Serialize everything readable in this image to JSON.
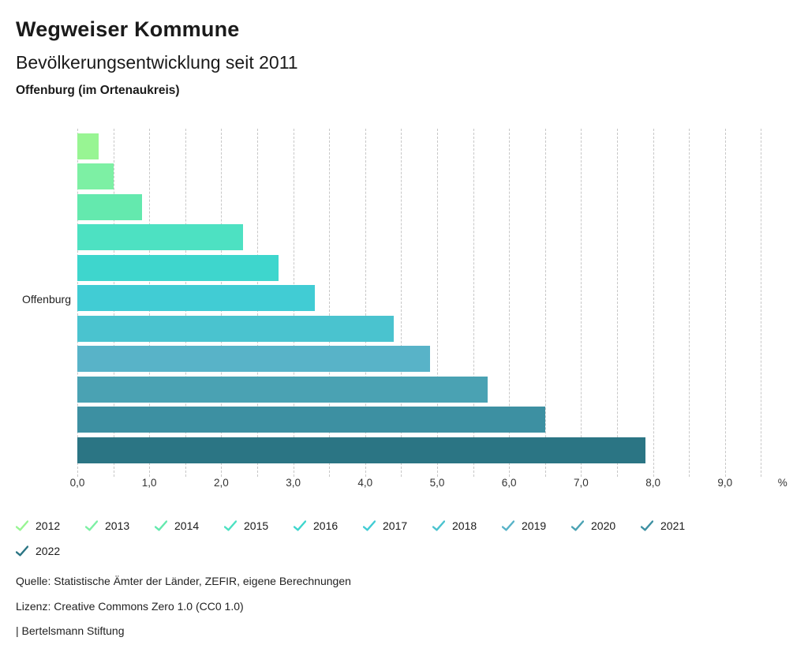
{
  "header": {
    "title": "Wegweiser Kommune",
    "subtitle": "Bevölkerungsentwicklung seit 2011",
    "location": "Offenburg (im Ortenaukreis)"
  },
  "chart_data": {
    "type": "bar",
    "orientation": "horizontal",
    "title": "Bevölkerungsentwicklung seit 2011",
    "region_label": "Offenburg",
    "categories": [
      "2012",
      "2013",
      "2014",
      "2015",
      "2016",
      "2017",
      "2018",
      "2019",
      "2020",
      "2021",
      "2022"
    ],
    "values": [
      0.3,
      0.5,
      0.9,
      2.3,
      2.8,
      3.3,
      4.4,
      4.9,
      5.7,
      6.5,
      7.9
    ],
    "colors": [
      "#98f593",
      "#7df0a4",
      "#64e9ae",
      "#4de1c2",
      "#3ed6cd",
      "#41ccd4",
      "#4ac3cf",
      "#58b3c8",
      "#4aa2b3",
      "#3d90a2",
      "#2b7584"
    ],
    "xlim": [
      0,
      9.5
    ],
    "grid_step": 0.5,
    "grid": true,
    "x_tick_labels": [
      "0,0",
      "1,0",
      "2,0",
      "3,0",
      "4,0",
      "5,0",
      "6,0",
      "7,0",
      "8,0",
      "9,0"
    ],
    "x_axis_suffix": "%",
    "legend_position": "bottom",
    "legend_marker": "check-icon"
  },
  "footer": {
    "source": "Quelle: Statistische Ämter der Länder, ZEFIR, eigene Berechnungen",
    "license": "Lizenz: Creative Commons Zero 1.0 (CC0 1.0)",
    "branding": "| Bertelsmann Stiftung"
  }
}
